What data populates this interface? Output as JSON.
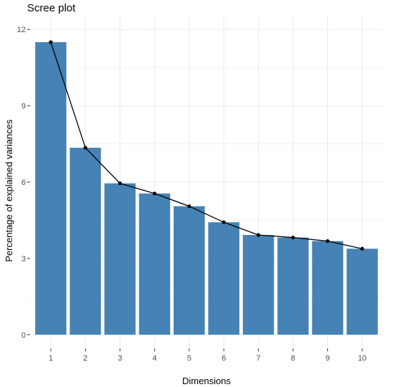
{
  "chart_data": {
    "type": "bar",
    "title": "Scree plot",
    "xlabel": "Dimensions",
    "ylabel": "Percentage of explained variances",
    "categories": [
      "1",
      "2",
      "3",
      "4",
      "5",
      "6",
      "7",
      "8",
      "9",
      "10"
    ],
    "values": [
      11.5,
      7.35,
      5.95,
      5.55,
      5.05,
      4.42,
      3.92,
      3.82,
      3.68,
      3.38
    ],
    "yticks": [
      "0",
      "3",
      "6",
      "9",
      "12"
    ],
    "ylim": [
      0,
      12
    ],
    "grid": true,
    "bar_color": "#4682B4",
    "line_color": "#000000",
    "panel_background": "#ffffff",
    "grid_color": "#ebebeb"
  }
}
